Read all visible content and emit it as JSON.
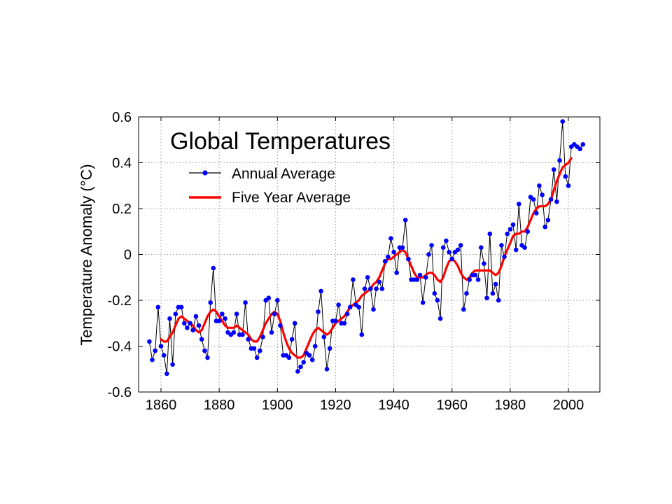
{
  "chart_data": {
    "type": "line",
    "title": "Global Temperatures",
    "xlabel": "",
    "ylabel": "Temperature Anomaly (°C)",
    "xlim": [
      1850,
      2010
    ],
    "ylim": [
      -0.6,
      0.6
    ],
    "xticks": [
      1860,
      1880,
      1900,
      1920,
      1940,
      1960,
      1980,
      2000
    ],
    "yticks": [
      -0.6,
      -0.4,
      -0.2,
      0,
      0.2,
      0.4,
      0.6
    ],
    "xtick_labels": [
      "1860",
      "1880",
      "1900",
      "1920",
      "1940",
      "1960",
      "1980",
      "2000"
    ],
    "ytick_labels": [
      "-0.6",
      "-0.4",
      "-0.2",
      "0",
      "0.2",
      "0.4",
      "0.6"
    ],
    "grid": true,
    "legend_position": "top-left",
    "series": [
      {
        "name": "Annual Average",
        "color": "#0000ff",
        "line_color": "#000000",
        "marker": "circle",
        "x": [
          1856,
          1857,
          1858,
          1859,
          1860,
          1861,
          1862,
          1863,
          1864,
          1865,
          1866,
          1867,
          1868,
          1869,
          1870,
          1871,
          1872,
          1873,
          1874,
          1875,
          1876,
          1877,
          1878,
          1879,
          1880,
          1881,
          1882,
          1883,
          1884,
          1885,
          1886,
          1887,
          1888,
          1889,
          1890,
          1891,
          1892,
          1893,
          1894,
          1895,
          1896,
          1897,
          1898,
          1899,
          1900,
          1901,
          1902,
          1903,
          1904,
          1905,
          1906,
          1907,
          1908,
          1909,
          1910,
          1911,
          1912,
          1913,
          1914,
          1915,
          1916,
          1917,
          1918,
          1919,
          1920,
          1921,
          1922,
          1923,
          1924,
          1925,
          1926,
          1927,
          1928,
          1929,
          1930,
          1931,
          1932,
          1933,
          1934,
          1935,
          1936,
          1937,
          1938,
          1939,
          1940,
          1941,
          1942,
          1943,
          1944,
          1945,
          1946,
          1947,
          1948,
          1949,
          1950,
          1951,
          1952,
          1953,
          1954,
          1955,
          1956,
          1957,
          1958,
          1959,
          1960,
          1961,
          1962,
          1963,
          1964,
          1965,
          1966,
          1967,
          1968,
          1969,
          1970,
          1971,
          1972,
          1973,
          1974,
          1975,
          1976,
          1977,
          1978,
          1979,
          1980,
          1981,
          1982,
          1983,
          1984,
          1985,
          1986,
          1987,
          1988,
          1989,
          1990,
          1991,
          1992,
          1993,
          1994,
          1995,
          1996,
          1997,
          1998,
          1999,
          2000,
          2001,
          2002,
          2003,
          2004,
          2005
        ],
        "y": [
          -0.38,
          -0.46,
          -0.42,
          -0.23,
          -0.4,
          -0.44,
          -0.52,
          -0.28,
          -0.48,
          -0.26,
          -0.23,
          -0.23,
          -0.3,
          -0.32,
          -0.3,
          -0.33,
          -0.27,
          -0.31,
          -0.37,
          -0.42,
          -0.45,
          -0.21,
          -0.06,
          -0.29,
          -0.29,
          -0.26,
          -0.28,
          -0.34,
          -0.35,
          -0.34,
          -0.26,
          -0.35,
          -0.35,
          -0.21,
          -0.37,
          -0.41,
          -0.41,
          -0.45,
          -0.42,
          -0.36,
          -0.2,
          -0.19,
          -0.34,
          -0.26,
          -0.2,
          -0.31,
          -0.44,
          -0.44,
          -0.45,
          -0.37,
          -0.3,
          -0.51,
          -0.49,
          -0.47,
          -0.43,
          -0.44,
          -0.46,
          -0.4,
          -0.25,
          -0.16,
          -0.36,
          -0.5,
          -0.41,
          -0.29,
          -0.29,
          -0.22,
          -0.3,
          -0.3,
          -0.26,
          -0.23,
          -0.11,
          -0.22,
          -0.23,
          -0.35,
          -0.15,
          -0.1,
          -0.15,
          -0.24,
          -0.15,
          -0.12,
          -0.15,
          -0.03,
          -0.01,
          0.07,
          0.01,
          -0.08,
          0.03,
          0.03,
          0.15,
          -0.02,
          -0.11,
          -0.11,
          -0.11,
          -0.09,
          -0.21,
          -0.1,
          0.0,
          0.04,
          -0.17,
          -0.2,
          -0.28,
          0.03,
          0.06,
          0.01,
          -0.02,
          0.01,
          0.02,
          0.04,
          -0.24,
          -0.17,
          -0.11,
          -0.09,
          -0.09,
          -0.11,
          0.03,
          -0.04,
          -0.19,
          0.09,
          -0.17,
          -0.13,
          -0.2,
          0.04,
          -0.01,
          0.09,
          0.11,
          0.13,
          0.02,
          0.22,
          0.04,
          0.03,
          0.1,
          0.25,
          0.24,
          0.18,
          0.3,
          0.26,
          0.12,
          0.15,
          0.24,
          0.37,
          0.23,
          0.41,
          0.58,
          0.34,
          0.3,
          0.47,
          0.48,
          0.47,
          0.46,
          0.48
        ]
      },
      {
        "name": "Five Year Average",
        "color": "#ff0000",
        "x": [
          1860,
          1861,
          1862,
          1863,
          1864,
          1865,
          1866,
          1867,
          1868,
          1869,
          1870,
          1871,
          1872,
          1873,
          1874,
          1875,
          1876,
          1877,
          1878,
          1879,
          1880,
          1881,
          1882,
          1883,
          1884,
          1885,
          1886,
          1887,
          1888,
          1889,
          1890,
          1891,
          1892,
          1893,
          1894,
          1895,
          1896,
          1897,
          1898,
          1899,
          1900,
          1901,
          1902,
          1903,
          1904,
          1905,
          1906,
          1907,
          1908,
          1909,
          1910,
          1911,
          1912,
          1913,
          1914,
          1915,
          1916,
          1917,
          1918,
          1919,
          1920,
          1921,
          1922,
          1923,
          1924,
          1925,
          1926,
          1927,
          1928,
          1929,
          1930,
          1931,
          1932,
          1933,
          1934,
          1935,
          1936,
          1937,
          1938,
          1939,
          1940,
          1941,
          1942,
          1943,
          1944,
          1945,
          1946,
          1947,
          1948,
          1949,
          1950,
          1951,
          1952,
          1953,
          1954,
          1955,
          1956,
          1957,
          1958,
          1959,
          1960,
          1961,
          1962,
          1963,
          1964,
          1965,
          1966,
          1967,
          1968,
          1969,
          1970,
          1971,
          1972,
          1973,
          1974,
          1975,
          1976,
          1977,
          1978,
          1979,
          1980,
          1981,
          1982,
          1983,
          1984,
          1985,
          1986,
          1987,
          1988,
          1989,
          1990,
          1991,
          1992,
          1993,
          1994,
          1995,
          1996,
          1997,
          1998,
          1999,
          2000,
          2001
        ],
        "y": [
          -0.37,
          -0.38,
          -0.38,
          -0.36,
          -0.34,
          -0.31,
          -0.28,
          -0.27,
          -0.28,
          -0.29,
          -0.3,
          -0.31,
          -0.33,
          -0.34,
          -0.33,
          -0.3,
          -0.27,
          -0.25,
          -0.24,
          -0.25,
          -0.27,
          -0.29,
          -0.31,
          -0.32,
          -0.32,
          -0.32,
          -0.31,
          -0.32,
          -0.33,
          -0.34,
          -0.35,
          -0.37,
          -0.38,
          -0.38,
          -0.36,
          -0.33,
          -0.3,
          -0.28,
          -0.26,
          -0.25,
          -0.26,
          -0.29,
          -0.34,
          -0.38,
          -0.41,
          -0.43,
          -0.44,
          -0.45,
          -0.45,
          -0.44,
          -0.41,
          -0.38,
          -0.35,
          -0.33,
          -0.32,
          -0.33,
          -0.34,
          -0.35,
          -0.34,
          -0.32,
          -0.3,
          -0.29,
          -0.28,
          -0.27,
          -0.25,
          -0.23,
          -0.22,
          -0.21,
          -0.2,
          -0.18,
          -0.17,
          -0.16,
          -0.15,
          -0.13,
          -0.12,
          -0.1,
          -0.07,
          -0.04,
          -0.02,
          -0.02,
          -0.01,
          0.0,
          0.01,
          0.02,
          0.01,
          -0.02,
          -0.05,
          -0.08,
          -0.1,
          -0.1,
          -0.1,
          -0.09,
          -0.08,
          -0.08,
          -0.09,
          -0.11,
          -0.12,
          -0.1,
          -0.06,
          -0.03,
          -0.02,
          -0.03,
          -0.05,
          -0.08,
          -0.1,
          -0.11,
          -0.1,
          -0.08,
          -0.07,
          -0.07,
          -0.07,
          -0.07,
          -0.07,
          -0.07,
          -0.08,
          -0.09,
          -0.08,
          -0.05,
          -0.01,
          0.02,
          0.05,
          0.08,
          0.09,
          0.09,
          0.1,
          0.1,
          0.12,
          0.15,
          0.18,
          0.2,
          0.21,
          0.21,
          0.21,
          0.22,
          0.24,
          0.28,
          0.32,
          0.35,
          0.38,
          0.39,
          0.4,
          0.42
        ]
      }
    ]
  }
}
